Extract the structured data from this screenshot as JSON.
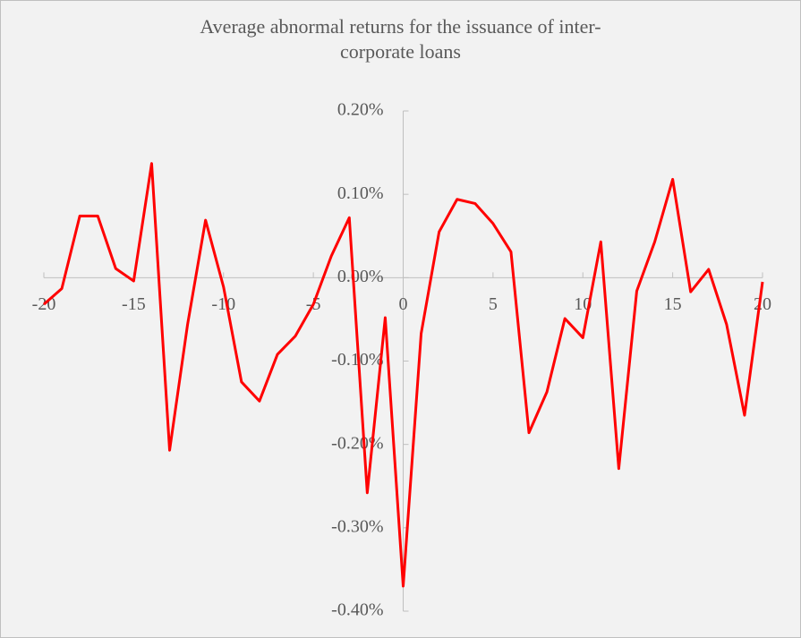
{
  "chart_data": {
    "type": "line",
    "title": "Average abnormal returns for the issuance of inter-corporate loans",
    "x": [
      -20,
      -19,
      -18,
      -17,
      -16,
      -15,
      -14,
      -13,
      -12,
      -11,
      -10,
      -9,
      -8,
      -7,
      -6,
      -5,
      -4,
      -3,
      -2,
      -1,
      0,
      1,
      2,
      3,
      4,
      5,
      6,
      7,
      8,
      9,
      10,
      11,
      12,
      13,
      14,
      15,
      16,
      17,
      18,
      19,
      20
    ],
    "series": [
      {
        "name": "Average abnormal returns",
        "color": "#ff0000",
        "values": [
          -0.032,
          -0.013,
          0.074,
          0.074,
          0.011,
          -0.004,
          0.137,
          -0.207,
          -0.056,
          0.069,
          -0.011,
          -0.125,
          -0.148,
          -0.092,
          -0.07,
          -0.032,
          0.026,
          0.072,
          -0.258,
          -0.048,
          -0.37,
          -0.067,
          0.055,
          0.094,
          0.089,
          0.065,
          0.031,
          -0.186,
          -0.137,
          -0.049,
          -0.072,
          0.043,
          -0.229,
          -0.016,
          0.043,
          0.118,
          -0.017,
          0.01,
          -0.056,
          -0.165,
          -0.005
        ]
      }
    ],
    "xlim": [
      -20,
      20
    ],
    "xticks": [
      -20,
      -15,
      -10,
      -5,
      0,
      5,
      10,
      15,
      20
    ],
    "ylim": [
      -0.4,
      0.2
    ],
    "yticks": [
      {
        "value": -0.4,
        "label": "-0.40%"
      },
      {
        "value": -0.3,
        "label": "-0.30%"
      },
      {
        "value": -0.2,
        "label": "-0.20%"
      },
      {
        "value": -0.1,
        "label": "-0.10%"
      },
      {
        "value": 0,
        "label": "0.00%"
      },
      {
        "value": 0.1,
        "label": "0.10%"
      },
      {
        "value": 0.2,
        "label": "0.20%"
      }
    ]
  }
}
